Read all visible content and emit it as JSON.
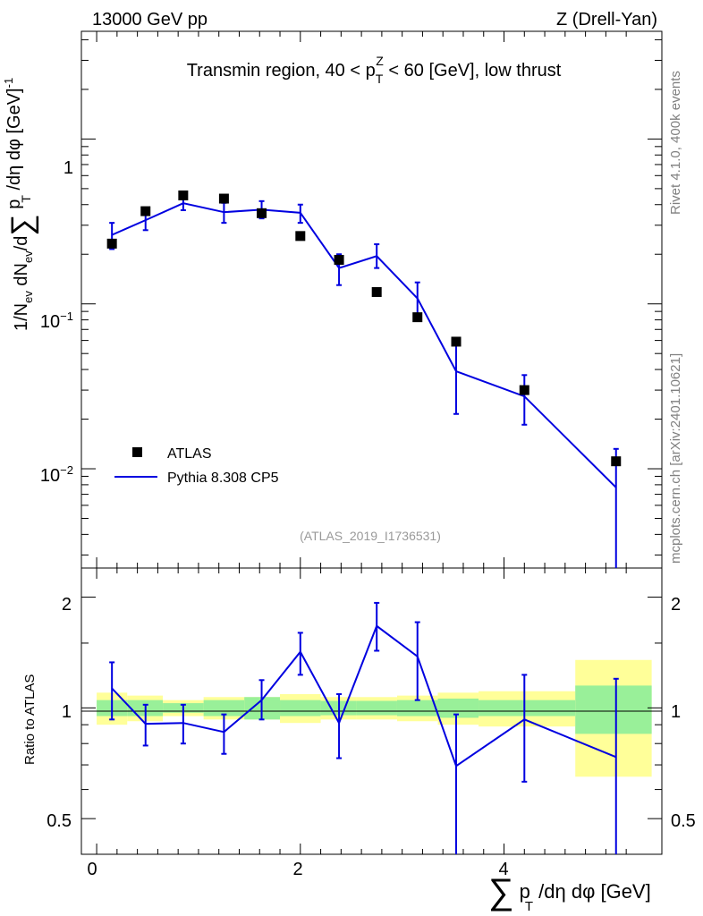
{
  "header": {
    "left": "13000 GeV pp",
    "right": "Z (Drell-Yan)"
  },
  "side_labels": {
    "rivet": "Rivet 4.1.0,  400k events",
    "mcplots": "mcplots.cern.ch [arXiv:2401.10621]"
  },
  "chart_data": {
    "type": "line",
    "title": "Transmin region, 40 < p_T^Z < 60 [GeV], low thrust",
    "analysis_id": "(ATLAS_2019_I1736531)",
    "xlabel": "∑ p_T /dη dφ [GeV]",
    "ylabel": "1/N_ev dN_ev/d∑ p_T /dη dφ [GeV]^-1",
    "ratio_ylabel": "Ratio to ATLAS",
    "xlim": [
      -0.15,
      5.55
    ],
    "ylim": [
      0.0025,
      4.5
    ],
    "ratio_ylim": [
      0.4,
      2.4
    ],
    "x_ticks": [
      "0",
      "2",
      "4"
    ],
    "y_ticks": [
      "1",
      "10^-1",
      "10^-2"
    ],
    "ratio_ticks": [
      "0.5",
      "1",
      "2"
    ],
    "legend": [
      {
        "label": "ATLAS",
        "marker": "square",
        "color": "#000000"
      },
      {
        "label": "Pythia 8.308 CP5",
        "marker": "line",
        "color": "#0000e0"
      }
    ],
    "bins": [
      {
        "lo": 0.0,
        "hi": 0.3
      },
      {
        "lo": 0.3,
        "hi": 0.65
      },
      {
        "lo": 0.65,
        "hi": 1.05
      },
      {
        "lo": 1.05,
        "hi": 1.45
      },
      {
        "lo": 1.45,
        "hi": 1.8
      },
      {
        "lo": 1.8,
        "hi": 2.2
      },
      {
        "lo": 2.2,
        "hi": 2.55
      },
      {
        "lo": 2.55,
        "hi": 2.95
      },
      {
        "lo": 2.95,
        "hi": 3.35
      },
      {
        "lo": 3.35,
        "hi": 3.75
      },
      {
        "lo": 3.75,
        "hi": 4.7
      },
      {
        "lo": 4.7,
        "hi": 5.45
      }
    ],
    "data_x": [
      0.15,
      0.48,
      0.85,
      1.25,
      1.62,
      2.0,
      2.38,
      2.75,
      3.15,
      3.53,
      4.2,
      5.1
    ],
    "data_y": [
      0.232,
      0.365,
      0.455,
      0.435,
      0.355,
      0.258,
      0.185,
      0.118,
      0.083,
      0.059,
      0.03,
      0.0111
    ],
    "data_err_stat": [
      0.05,
      0.05,
      0.03,
      0.05,
      0.07,
      0.05,
      0.045,
      0.045,
      0.05,
      0.06,
      0.05,
      0.15
    ],
    "data_err_total": [
      0.1,
      0.08,
      0.05,
      0.07,
      0.07,
      0.09,
      0.07,
      0.07,
      0.08,
      0.1,
      0.11,
      0.35
    ],
    "mc_x": [
      0.15,
      0.48,
      0.85,
      1.25,
      1.62,
      2.0,
      2.38,
      2.75,
      3.15,
      3.53,
      4.2,
      5.1
    ],
    "mc_y": [
      0.262,
      0.322,
      0.408,
      0.36,
      0.373,
      0.357,
      0.165,
      0.195,
      0.108,
      0.039,
      0.0275,
      0.0077
    ],
    "mc_err_lo": [
      0.215,
      0.28,
      0.37,
      0.31,
      0.33,
      0.31,
      0.13,
      0.165,
      0.08,
      0.0215,
      0.0185,
      0.002
    ],
    "mc_err_hi": [
      0.31,
      0.37,
      0.45,
      0.41,
      0.42,
      0.4,
      0.2,
      0.23,
      0.135,
      0.057,
      0.037,
      0.0132
    ],
    "ratio": [
      1.13,
      0.905,
      0.91,
      0.86,
      1.05,
      1.42,
      0.91,
      1.67,
      1.38,
      0.695,
      0.93,
      0.735
    ],
    "ratio_err_lo": [
      0.93,
      0.79,
      0.8,
      0.75,
      0.93,
      1.23,
      0.73,
      1.43,
      1.05,
      0.35,
      0.63,
      0.35
    ],
    "ratio_err_hi": [
      1.33,
      1.02,
      1.02,
      0.96,
      1.19,
      1.6,
      1.09,
      1.93,
      1.71,
      0.96,
      1.23,
      1.2
    ]
  }
}
